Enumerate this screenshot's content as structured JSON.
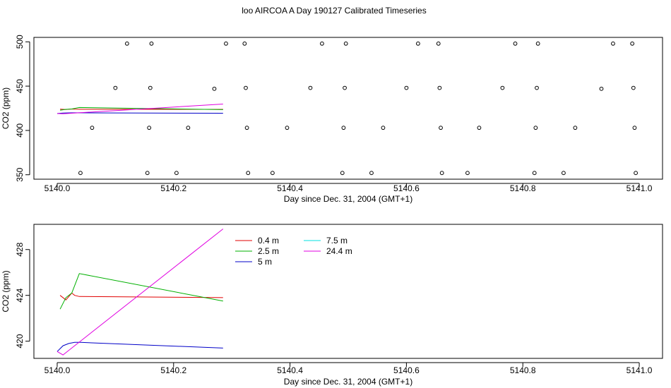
{
  "figure": {
    "title": "loo AIRCOA A  Day 190127  Calibrated Timeseries"
  },
  "chart_data": [
    {
      "type": "scatter",
      "xlabel": "Day since Dec. 31, 2004 (GMT+1)",
      "ylabel": "CO2 (ppm)",
      "xlim": [
        5139.96,
        5141.04
      ],
      "ylim": [
        345,
        505
      ],
      "xticks": [
        5140.0,
        5140.2,
        5140.4,
        5140.6,
        5140.8,
        5141.0
      ],
      "xtick_labels": [
        "5140.0",
        "5140.2",
        "5140.4",
        "5140.6",
        "5140.8",
        "5141.0"
      ],
      "yticks": [
        350,
        400,
        450,
        500
      ],
      "ytick_labels": [
        "350",
        "400",
        "450",
        "500"
      ],
      "grid": false,
      "marker": "open-circle",
      "points": [
        {
          "x": 5140.04,
          "y": 352
        },
        {
          "x": 5140.06,
          "y": 403
        },
        {
          "x": 5140.1,
          "y": 448
        },
        {
          "x": 5140.12,
          "y": 498
        },
        {
          "x": 5140.155,
          "y": 352
        },
        {
          "x": 5140.158,
          "y": 403
        },
        {
          "x": 5140.16,
          "y": 448
        },
        {
          "x": 5140.162,
          "y": 498
        },
        {
          "x": 5140.205,
          "y": 352
        },
        {
          "x": 5140.225,
          "y": 403
        },
        {
          "x": 5140.27,
          "y": 447
        },
        {
          "x": 5140.29,
          "y": 498
        },
        {
          "x": 5140.322,
          "y": 498
        },
        {
          "x": 5140.324,
          "y": 448
        },
        {
          "x": 5140.326,
          "y": 403
        },
        {
          "x": 5140.328,
          "y": 352
        },
        {
          "x": 5140.37,
          "y": 352
        },
        {
          "x": 5140.395,
          "y": 403
        },
        {
          "x": 5140.435,
          "y": 448
        },
        {
          "x": 5140.455,
          "y": 498
        },
        {
          "x": 5140.49,
          "y": 352
        },
        {
          "x": 5140.492,
          "y": 403
        },
        {
          "x": 5140.494,
          "y": 448
        },
        {
          "x": 5140.496,
          "y": 498
        },
        {
          "x": 5140.54,
          "y": 352
        },
        {
          "x": 5140.56,
          "y": 403
        },
        {
          "x": 5140.6,
          "y": 448
        },
        {
          "x": 5140.62,
          "y": 498
        },
        {
          "x": 5140.655,
          "y": 498
        },
        {
          "x": 5140.657,
          "y": 448
        },
        {
          "x": 5140.659,
          "y": 403
        },
        {
          "x": 5140.661,
          "y": 352
        },
        {
          "x": 5140.705,
          "y": 352
        },
        {
          "x": 5140.725,
          "y": 403
        },
        {
          "x": 5140.765,
          "y": 448
        },
        {
          "x": 5140.787,
          "y": 498
        },
        {
          "x": 5140.82,
          "y": 352
        },
        {
          "x": 5140.822,
          "y": 403
        },
        {
          "x": 5140.824,
          "y": 448
        },
        {
          "x": 5140.826,
          "y": 498
        },
        {
          "x": 5140.87,
          "y": 352
        },
        {
          "x": 5140.89,
          "y": 403
        },
        {
          "x": 5140.935,
          "y": 447
        },
        {
          "x": 5140.955,
          "y": 498
        },
        {
          "x": 5140.988,
          "y": 498
        },
        {
          "x": 5140.99,
          "y": 448
        },
        {
          "x": 5140.992,
          "y": 403
        },
        {
          "x": 5140.994,
          "y": 352
        }
      ],
      "series": [
        {
          "color": "#e00000",
          "x": [
            5140.005,
            5140.015,
            5140.025,
            5140.03,
            5140.038,
            5140.285
          ],
          "y": [
            424.0,
            423.6,
            424.2,
            424.0,
            423.9,
            423.8
          ]
        },
        {
          "color": "#00b000",
          "x": [
            5140.005,
            5140.015,
            5140.025,
            5140.038,
            5140.285
          ],
          "y": [
            422.8,
            423.8,
            424.2,
            425.9,
            423.5
          ]
        },
        {
          "color": "#0000c8",
          "x": [
            5140.0,
            5140.01,
            5140.02,
            5140.03,
            5140.04,
            5140.285
          ],
          "y": [
            419.1,
            419.6,
            419.8,
            419.9,
            419.9,
            419.4
          ]
        },
        {
          "color": "#e000e0",
          "x": [
            5140.0,
            5140.01,
            5140.02,
            5140.285
          ],
          "y": [
            419.1,
            418.8,
            419.2,
            429.8
          ]
        }
      ]
    },
    {
      "type": "line",
      "xlabel": "Day since Dec. 31, 2004 (GMT+1)",
      "ylabel": "CO2 (ppm)",
      "xlim": [
        5139.96,
        5141.04
      ],
      "ylim": [
        418.5,
        430.2
      ],
      "xticks": [
        5140.0,
        5140.2,
        5140.4,
        5140.6,
        5140.8,
        5141.0
      ],
      "xtick_labels": [
        "5140.0",
        "5140.2",
        "5140.4",
        "5140.6",
        "5140.8",
        "5141.0"
      ],
      "yticks": [
        420,
        424,
        428
      ],
      "ytick_labels": [
        "420",
        "424",
        "428"
      ],
      "grid": false,
      "legend_placement": "top-left",
      "series": [
        {
          "name": "0.4 m",
          "color": "#e00000",
          "x": [
            5140.005,
            5140.015,
            5140.025,
            5140.03,
            5140.038,
            5140.285
          ],
          "y": [
            424.0,
            423.6,
            424.2,
            424.0,
            423.9,
            423.8
          ]
        },
        {
          "name": "2.5 m",
          "color": "#00b000",
          "x": [
            5140.005,
            5140.015,
            5140.025,
            5140.038,
            5140.285
          ],
          "y": [
            422.8,
            423.8,
            424.2,
            425.9,
            423.5
          ]
        },
        {
          "name": "5 m",
          "color": "#0000c8",
          "x": [
            5140.0,
            5140.01,
            5140.02,
            5140.03,
            5140.04,
            5140.285
          ],
          "y": [
            419.1,
            419.6,
            419.8,
            419.9,
            419.9,
            419.4
          ]
        },
        {
          "name": "7.5 m",
          "color": "#00e0e0",
          "x": [],
          "y": []
        },
        {
          "name": "24.4 m",
          "color": "#e000e0",
          "x": [
            5140.0,
            5140.01,
            5140.02,
            5140.285
          ],
          "y": [
            419.1,
            418.8,
            419.2,
            429.8
          ]
        }
      ]
    }
  ]
}
